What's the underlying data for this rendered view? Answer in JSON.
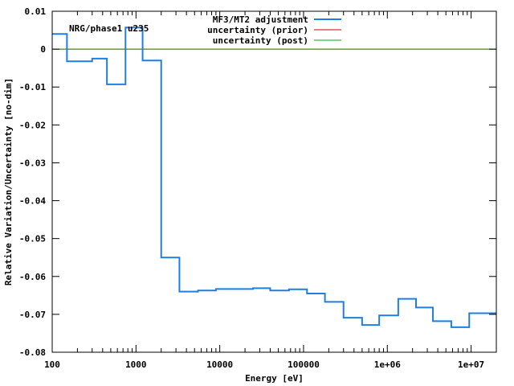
{
  "chart_data": {
    "type": "line",
    "step": true,
    "xscale": "log",
    "xlim": [
      100,
      20000000
    ],
    "ylim": [
      -0.08,
      0.01
    ],
    "xlabel": "Energy [eV]",
    "ylabel": "Relative Variation/Uncertainty [no-dim]",
    "x_ticks": [
      {
        "value": 100,
        "label": "100"
      },
      {
        "value": 1000,
        "label": "1000"
      },
      {
        "value": 10000,
        "label": "10000"
      },
      {
        "value": 100000,
        "label": "100000"
      },
      {
        "value": 1000000,
        "label": "1e+06"
      },
      {
        "value": 10000000,
        "label": "1e+07"
      }
    ],
    "y_ticks": [
      {
        "value": 0.01,
        "label": "0.01"
      },
      {
        "value": 0,
        "label": "0"
      },
      {
        "value": -0.01,
        "label": "-0.01"
      },
      {
        "value": -0.02,
        "label": "-0.02"
      },
      {
        "value": -0.03,
        "label": "-0.03"
      },
      {
        "value": -0.04,
        "label": "-0.04"
      },
      {
        "value": -0.05,
        "label": "-0.05"
      },
      {
        "value": -0.06,
        "label": "-0.06"
      },
      {
        "value": -0.07,
        "label": "-0.07"
      },
      {
        "value": -0.08,
        "label": "-0.08"
      }
    ],
    "annotation": "NRG/phase1 u235",
    "legend_position": "top-center",
    "series": [
      {
        "name": "MF3/MT2 adjustment",
        "color": "#1f7fe0",
        "bins": [
          {
            "x0": 100,
            "x1": 150,
            "y": 0.004
          },
          {
            "x0": 150,
            "x1": 300,
            "y": -0.0032
          },
          {
            "x0": 300,
            "x1": 450,
            "y": -0.0025
          },
          {
            "x0": 450,
            "x1": 750,
            "y": -0.0093
          },
          {
            "x0": 750,
            "x1": 1200,
            "y": 0.0057
          },
          {
            "x0": 1200,
            "x1": 2000,
            "y": -0.003
          },
          {
            "x0": 2000,
            "x1": 3300,
            "y": -0.055
          },
          {
            "x0": 3300,
            "x1": 5500,
            "y": -0.064
          },
          {
            "x0": 5500,
            "x1": 9000,
            "y": -0.0637
          },
          {
            "x0": 9000,
            "x1": 15000,
            "y": -0.0633
          },
          {
            "x0": 15000,
            "x1": 25000,
            "y": -0.0633
          },
          {
            "x0": 25000,
            "x1": 40000,
            "y": -0.0631
          },
          {
            "x0": 40000,
            "x1": 67000,
            "y": -0.0637
          },
          {
            "x0": 67000,
            "x1": 110000,
            "y": -0.0634
          },
          {
            "x0": 110000,
            "x1": 180000,
            "y": -0.0645
          },
          {
            "x0": 180000,
            "x1": 300000,
            "y": -0.0667
          },
          {
            "x0": 300000,
            "x1": 500000,
            "y": -0.0709
          },
          {
            "x0": 500000,
            "x1": 800000,
            "y": -0.0728
          },
          {
            "x0": 800000,
            "x1": 1350000,
            "y": -0.0703
          },
          {
            "x0": 1350000,
            "x1": 2200000,
            "y": -0.0659
          },
          {
            "x0": 2200000,
            "x1": 3500000,
            "y": -0.0682
          },
          {
            "x0": 3500000,
            "x1": 5800000,
            "y": -0.0718
          },
          {
            "x0": 5800000,
            "x1": 9500000,
            "y": -0.0734
          },
          {
            "x0": 9500000,
            "x1": 20000000,
            "y": -0.0697
          }
        ]
      },
      {
        "name": "uncertainty (prior)",
        "color": "#cc0000",
        "value": 0
      },
      {
        "name": "uncertainty (post)",
        "color": "#00aa00",
        "value": 0
      }
    ]
  }
}
